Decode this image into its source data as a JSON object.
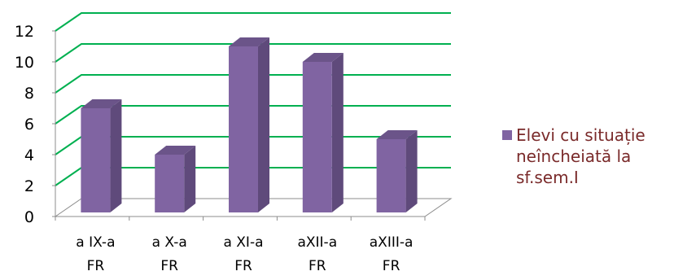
{
  "chart_data": {
    "type": "bar",
    "categories": [
      "a IX-a FR",
      "a X-a FR",
      "a XI-a FR",
      "aXII-a FR",
      "aXIII-a FR"
    ],
    "category_lines": [
      [
        "a IX-a",
        "FR"
      ],
      [
        "a X-a",
        "FR"
      ],
      [
        "a XI-a",
        "FR"
      ],
      [
        "aXII-a",
        "FR"
      ],
      [
        "aXIII-a",
        "FR"
      ]
    ],
    "series": [
      {
        "name": "Elevi cu situație neîncheiată la sf.sem.I",
        "values": [
          7,
          4,
          11,
          10,
          5
        ]
      }
    ],
    "legend_lines": [
      "Elevi cu situație",
      "neîncheiată la",
      "sf.sem.I"
    ],
    "yticks": [
      0,
      2,
      4,
      6,
      8,
      10,
      12
    ],
    "ylim": [
      0,
      12
    ],
    "grid": true,
    "legend_position": "right",
    "style": "3d-column"
  },
  "colors": {
    "bar_front": "#8064a2",
    "bar_side": "#5f4a7b",
    "bar_top": "#6b5489",
    "gridline": "#00b050",
    "axis": "#8c8c8c",
    "legend_text": "#7a2a2a"
  }
}
